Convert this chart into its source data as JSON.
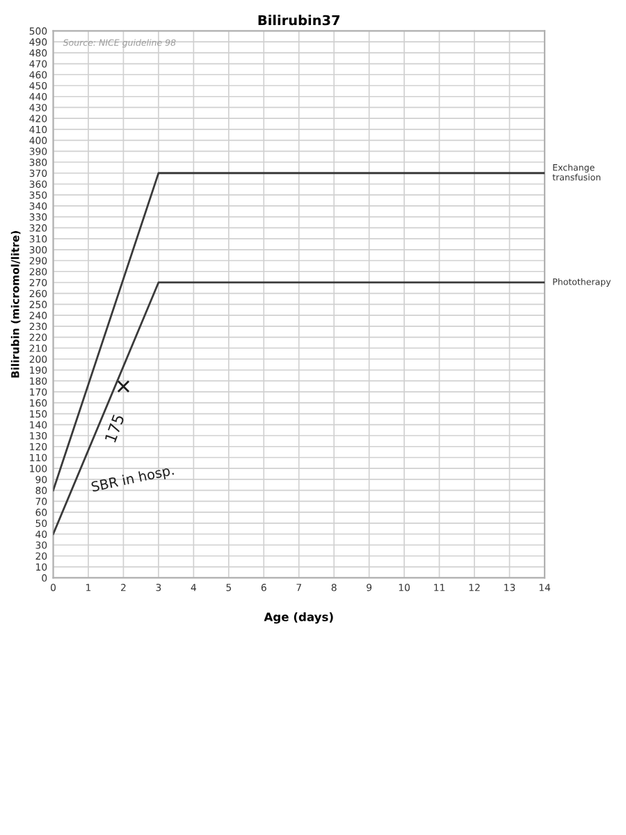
{
  "chart_data": {
    "type": "line",
    "title": "Bilirubin37",
    "xlabel": "Age (days)",
    "ylabel": "Bilirubin (micromol/litre)",
    "series": [
      {
        "name": "Exchange transfusion",
        "color": "#3a3a3a",
        "x": [
          0,
          3,
          14
        ],
        "values": [
          80,
          370,
          370
        ]
      },
      {
        "name": "Phototherapy",
        "color": "#3a3a3a",
        "x": [
          0,
          3,
          14
        ],
        "values": [
          40,
          270,
          270
        ]
      },
      {
        "type": "scatter",
        "color": "#1e1e1e",
        "x": [
          2
        ],
        "values": [
          175
        ],
        "marker": "cross"
      }
    ],
    "xlim": [
      0,
      14
    ],
    "xticks": [
      0,
      1,
      2,
      3,
      4,
      5,
      6,
      7,
      8,
      9,
      10,
      11,
      12,
      13,
      14
    ],
    "ylim": [
      0,
      500
    ],
    "yticks": [
      0,
      10,
      20,
      30,
      40,
      50,
      60,
      70,
      80,
      90,
      100,
      110,
      120,
      130,
      140,
      150,
      160,
      170,
      180,
      190,
      200,
      210,
      220,
      230,
      240,
      250,
      260,
      270,
      280,
      290,
      300,
      310,
      320,
      330,
      340,
      350,
      360,
      370,
      380,
      390,
      400,
      410,
      420,
      430,
      440,
      450,
      460,
      470,
      480,
      490,
      500
    ],
    "grid": true,
    "legend": false,
    "marker": "none",
    "line_style": "solid",
    "annotations": [
      "Source: NICE guideline 98",
      {
        "text": "175",
        "x": 2,
        "y": 175
      },
      "SBR in hosp."
    ]
  }
}
